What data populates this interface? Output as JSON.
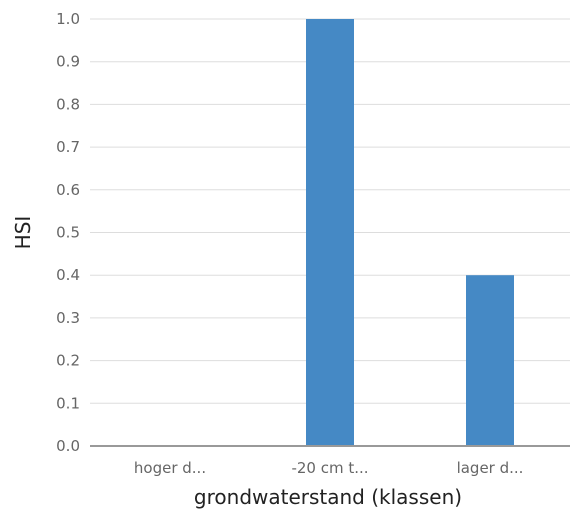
{
  "chart_data": {
    "type": "bar",
    "categories": [
      "hoger d...",
      "-20 cm t...",
      "lager d..."
    ],
    "values": [
      0.0,
      1.0,
      0.4
    ],
    "xlabel": "grondwaterstand (klassen)",
    "ylabel": "HSI",
    "ylim": [
      0,
      1
    ],
    "yticks": [
      "0.0",
      "0.1",
      "0.2",
      "0.3",
      "0.4",
      "0.5",
      "0.6",
      "0.7",
      "0.8",
      "0.9",
      "1.0"
    ],
    "grid": true,
    "legend": "none",
    "bar_color": "#4589c5"
  }
}
